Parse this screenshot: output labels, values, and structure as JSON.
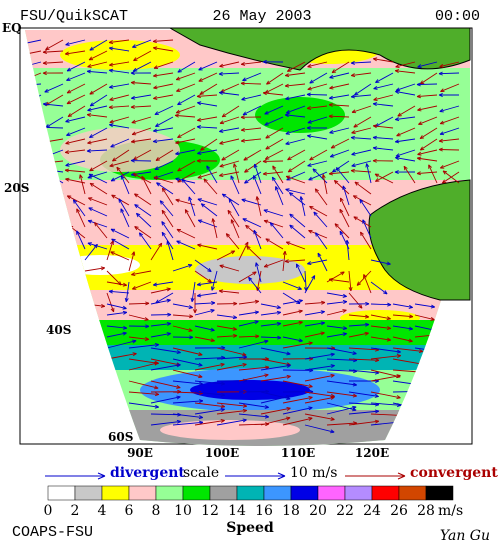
{
  "header": {
    "left": "FSU/QuikSCAT",
    "center": "26 May 2003",
    "right": "00:00"
  },
  "lat_labels": [
    "EQ",
    "20S",
    "40S",
    "60S"
  ],
  "lon_labels": [
    "90E",
    "100E",
    "110E",
    "120E"
  ],
  "legend": {
    "divergent": "divergent",
    "scale": "scale",
    "scale_value": "10 m/s",
    "convergent": "convergent",
    "speed_ticks": [
      0,
      2,
      4,
      6,
      8,
      10,
      12,
      14,
      16,
      18,
      20,
      22,
      24,
      26,
      28
    ],
    "unit": "m/s",
    "speed_label": "Speed"
  },
  "footer": {
    "left": "COAPS-FSU",
    "right": "Yan Gu"
  }
}
